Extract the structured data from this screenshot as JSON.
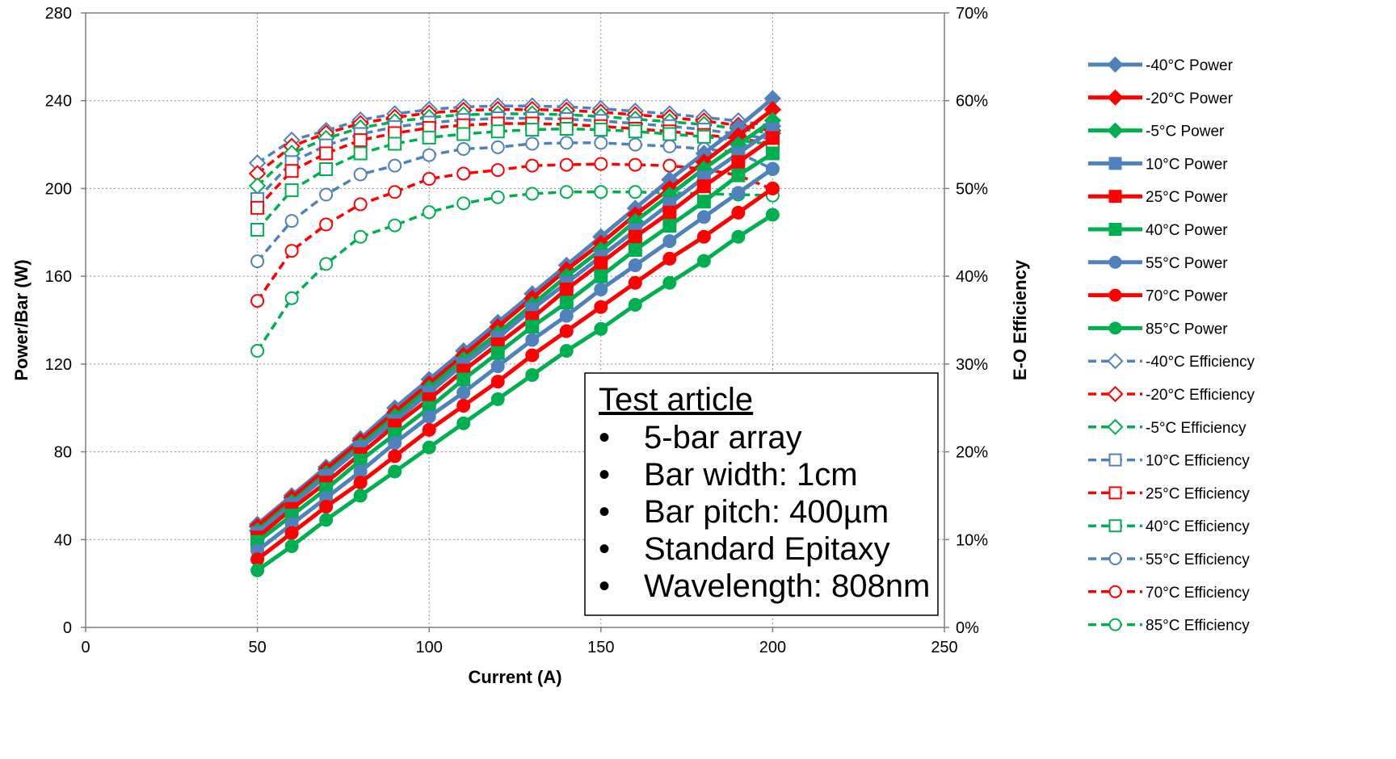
{
  "chart_data": {
    "type": "line",
    "title": "",
    "xlabel": "Current (A)",
    "ylabel": "Power/Bar (W)",
    "y2label": "E-O Efficiency",
    "xlim": [
      0,
      250
    ],
    "ylim": [
      0,
      280
    ],
    "y2lim": [
      0,
      70
    ],
    "xticks": [
      "0",
      "50",
      "100",
      "150",
      "200",
      "250"
    ],
    "yticks": [
      "0",
      "40",
      "80",
      "120",
      "160",
      "200",
      "240",
      "280"
    ],
    "y2ticks": [
      "0%",
      "10%",
      "20%",
      "30%",
      "40%",
      "50%",
      "60%",
      "70%"
    ],
    "grid": true,
    "legend_position": "right",
    "x": [
      50,
      60,
      70,
      80,
      90,
      100,
      110,
      120,
      130,
      140,
      150,
      160,
      170,
      180,
      190,
      200
    ],
    "series": [
      {
        "name": "-40°C Power",
        "axis": "left",
        "color": "#4F81BD",
        "marker": "diamond",
        "filled": true,
        "dashed": false,
        "values": [
          47,
          60,
          73,
          86,
          100,
          113,
          126,
          139,
          152,
          165,
          178,
          191,
          204,
          216,
          228,
          241
        ]
      },
      {
        "name": "-20°C Power",
        "axis": "left",
        "color": "#FF0000",
        "marker": "diamond",
        "filled": true,
        "dashed": false,
        "values": [
          46,
          59,
          72,
          85,
          98,
          111,
          124,
          137,
          150,
          163,
          175,
          188,
          200,
          212,
          224,
          236
        ]
      },
      {
        "name": "-5°C Power",
        "axis": "left",
        "color": "#00B050",
        "marker": "diamond",
        "filled": true,
        "dashed": false,
        "values": [
          44,
          57,
          70,
          83,
          96,
          109,
          122,
          134,
          147,
          160,
          172,
          185,
          197,
          209,
          220,
          231
        ]
      },
      {
        "name": "10°C Power",
        "axis": "left",
        "color": "#4F81BD",
        "marker": "square",
        "filled": true,
        "dashed": false,
        "values": [
          43,
          56,
          69,
          82,
          94,
          107,
          120,
          132,
          145,
          157,
          169,
          181,
          193,
          205,
          216,
          227
        ]
      },
      {
        "name": "25°C Power",
        "axis": "left",
        "color": "#FF0000",
        "marker": "square",
        "filled": true,
        "dashed": false,
        "values": [
          41,
          54,
          66,
          79,
          92,
          104,
          117,
          129,
          141,
          154,
          166,
          178,
          189,
          201,
          212,
          223
        ]
      },
      {
        "name": "40°C Power",
        "axis": "left",
        "color": "#00B050",
        "marker": "square",
        "filled": true,
        "dashed": false,
        "values": [
          39,
          51,
          63,
          76,
          88,
          100,
          113,
          125,
          137,
          148,
          160,
          172,
          183,
          194,
          206,
          216
        ]
      },
      {
        "name": "55°C Power",
        "axis": "left",
        "color": "#4F81BD",
        "marker": "circle",
        "filled": true,
        "dashed": false,
        "values": [
          35,
          47,
          59,
          71,
          84,
          96,
          107,
          119,
          131,
          142,
          154,
          165,
          176,
          187,
          198,
          209
        ]
      },
      {
        "name": "70°C Power",
        "axis": "left",
        "color": "#FF0000",
        "marker": "circle",
        "filled": true,
        "dashed": false,
        "values": [
          31,
          43,
          55,
          66,
          78,
          90,
          101,
          112,
          124,
          135,
          146,
          157,
          168,
          178,
          189,
          200
        ]
      },
      {
        "name": "85°C Power",
        "axis": "left",
        "color": "#00B050",
        "marker": "circle",
        "filled": true,
        "dashed": false,
        "values": [
          26,
          37,
          49,
          60,
          71,
          82,
          93,
          104,
          115,
          126,
          136,
          147,
          157,
          167,
          178,
          188
        ]
      },
      {
        "name": "-40°C Efficiency",
        "axis": "right",
        "color": "#4F81BD",
        "marker": "diamond",
        "filled": false,
        "dashed": true,
        "values": [
          52.9,
          55.5,
          56.6,
          57.8,
          58.5,
          59.0,
          59.3,
          59.4,
          59.4,
          59.3,
          59.1,
          58.8,
          58.5,
          58.1,
          57.7,
          57.1
        ]
      },
      {
        "name": "-20°C Efficiency",
        "axis": "right",
        "color": "#FF0000",
        "marker": "diamond",
        "filled": false,
        "dashed": true,
        "values": [
          51.7,
          54.8,
          56.3,
          57.4,
          58.1,
          58.6,
          58.9,
          59.0,
          59.0,
          58.9,
          58.7,
          58.4,
          58.1,
          57.7,
          57.2,
          56.6
        ]
      },
      {
        "name": "-5°C Efficiency",
        "axis": "right",
        "color": "#00B050",
        "marker": "diamond",
        "filled": false,
        "dashed": true,
        "values": [
          50.3,
          54.0,
          55.7,
          56.9,
          57.6,
          58.1,
          58.4,
          58.5,
          58.5,
          58.4,
          58.2,
          57.9,
          57.6,
          57.3,
          56.8,
          56.3
        ]
      },
      {
        "name": "10°C Efficiency",
        "axis": "right",
        "color": "#4F81BD",
        "marker": "square",
        "filled": false,
        "dashed": true,
        "values": [
          48.8,
          53.0,
          54.9,
          56.2,
          57.0,
          57.5,
          57.8,
          58.0,
          58.0,
          57.9,
          57.7,
          57.4,
          57.1,
          56.7,
          56.2,
          55.6
        ]
      },
      {
        "name": "25°C Efficiency",
        "axis": "right",
        "color": "#FF0000",
        "marker": "square",
        "filled": false,
        "dashed": true,
        "values": [
          47.8,
          52.0,
          54.0,
          55.5,
          56.3,
          56.9,
          57.2,
          57.4,
          57.4,
          57.3,
          57.1,
          56.8,
          56.5,
          56.1,
          55.7,
          55.1
        ]
      },
      {
        "name": "40°C Efficiency",
        "axis": "right",
        "color": "#00B050",
        "marker": "square",
        "filled": false,
        "dashed": true,
        "values": [
          45.3,
          49.8,
          52.2,
          54.0,
          55.1,
          55.8,
          56.2,
          56.5,
          56.7,
          56.8,
          56.7,
          56.5,
          56.2,
          55.9,
          55.5,
          55.0
        ]
      },
      {
        "name": "55°C Efficiency",
        "axis": "right",
        "color": "#4F81BD",
        "marker": "circle",
        "filled": false,
        "dashed": true,
        "values": [
          41.7,
          46.3,
          49.3,
          51.6,
          52.6,
          53.8,
          54.5,
          54.7,
          55.1,
          55.2,
          55.2,
          55.0,
          54.8,
          54.5,
          54.1,
          52.2
        ]
      },
      {
        "name": "70°C Efficiency",
        "axis": "right",
        "color": "#FF0000",
        "marker": "circle",
        "filled": false,
        "dashed": true,
        "values": [
          37.2,
          42.9,
          45.9,
          48.2,
          49.6,
          51.1,
          51.7,
          52.1,
          52.6,
          52.7,
          52.8,
          52.7,
          52.6,
          52.2,
          51.5,
          49.9
        ]
      },
      {
        "name": "85°C Efficiency",
        "axis": "right",
        "color": "#00B050",
        "marker": "circle",
        "filled": false,
        "dashed": true,
        "values": [
          31.5,
          37.5,
          41.4,
          44.5,
          45.8,
          47.3,
          48.3,
          49.0,
          49.4,
          49.6,
          49.6,
          49.6,
          49.5,
          49.4,
          49.3,
          49.2
        ]
      }
    ],
    "annotation": {
      "title": "Test article",
      "items": [
        "5-bar array",
        "Bar width:  1cm",
        "Bar pitch:  400µm",
        "Standard Epitaxy",
        "Wavelength: 808nm"
      ]
    }
  }
}
